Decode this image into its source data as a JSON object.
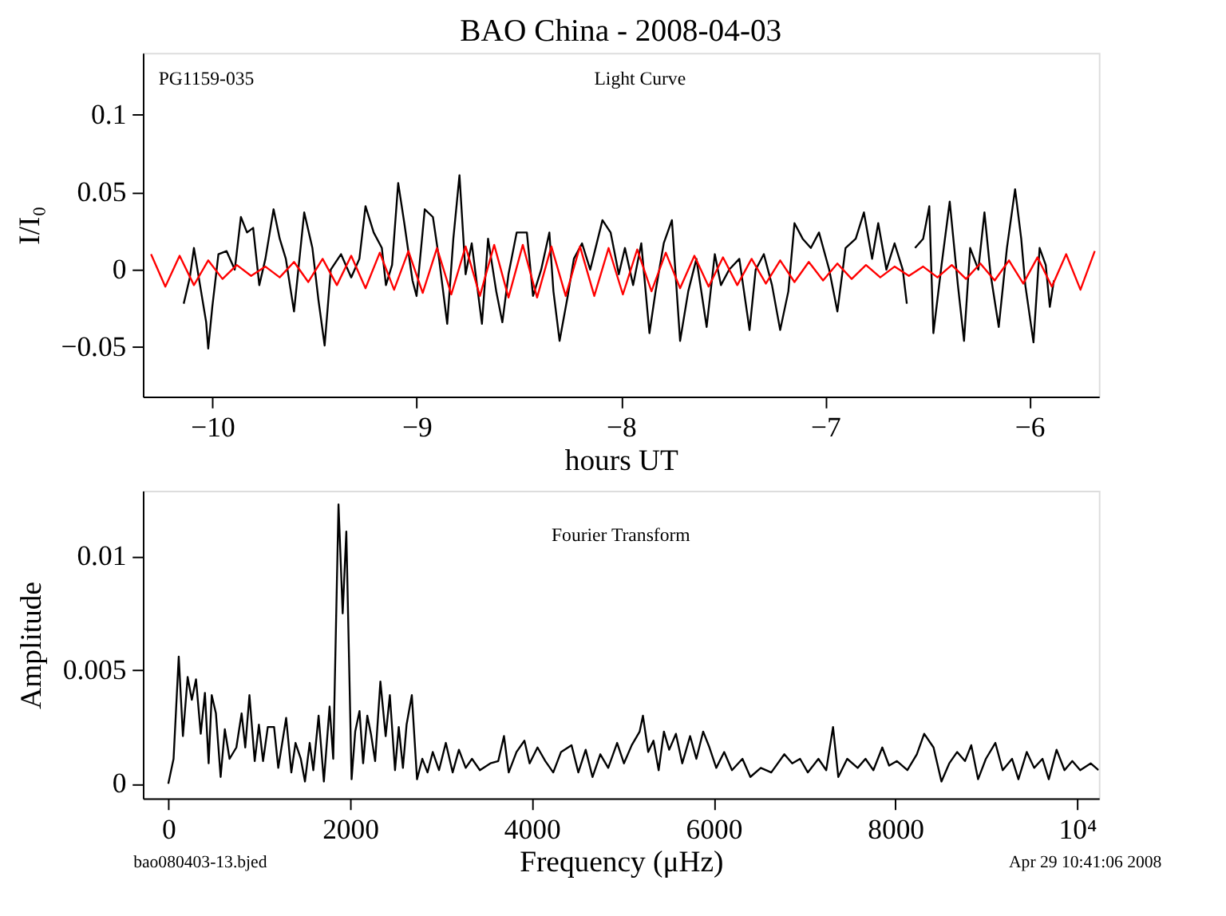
{
  "chart_data": [
    {
      "type": "line",
      "title": "BAO China - 2008-04-03",
      "xlabel": "hours UT",
      "ylabel": "I/I₀",
      "annotations": [
        "PG1159-035",
        "Light Curve"
      ],
      "xlim": [
        -10.34,
        -5.66
      ],
      "ylim": [
        -0.082,
        0.14
      ],
      "xticks": [
        {
          "value": -10,
          "label": "−10"
        },
        {
          "value": -9,
          "label": "−9"
        },
        {
          "value": -8,
          "label": "−8"
        },
        {
          "value": -7,
          "label": "−7"
        },
        {
          "value": -6,
          "label": "−6"
        }
      ],
      "yticks": [
        {
          "value": -0.05,
          "label": "−0.05"
        },
        0,
        0.05,
        0.1
      ],
      "grid": false,
      "series": [
        {
          "color": "#000000",
          "x": [
            -10.14,
            -10.11,
            -10.09,
            -10.06,
            -10.03,
            -10.02,
            -10.0,
            -9.97,
            -9.93,
            -9.89,
            -9.86,
            -9.83,
            -9.8,
            -9.77,
            -9.74,
            -9.7,
            -9.67,
            -9.64,
            -9.6,
            -9.55,
            -9.51,
            -9.48,
            -9.45,
            -9.42,
            -9.37,
            -9.32,
            -9.28,
            -9.25,
            -9.21,
            -9.17,
            -9.15,
            -9.12,
            -9.09,
            -9.06,
            -9.02,
            -9.0,
            -8.96,
            -8.92,
            -8.89,
            -8.85,
            -8.82,
            -8.79,
            -8.76,
            -8.73,
            -8.68,
            -8.65,
            -8.61,
            -8.58,
            -8.55,
            -8.51,
            -8.46,
            -8.43,
            -8.39,
            -8.35,
            -8.33,
            -8.3,
            -8.26,
            -8.23,
            -8.19,
            -8.15,
            -8.09,
            -8.05,
            -8.01,
            -7.98,
            -7.94,
            -7.9,
            -7.86,
            -7.83,
            -7.79,
            -7.75,
            -7.71,
            -7.67,
            -7.63,
            -7.58,
            -7.54,
            -7.51,
            -7.47,
            -7.42,
            -7.37,
            -7.34,
            -7.3,
            -7.26,
            -7.22,
            -7.18,
            -7.15,
            -7.11,
            -7.07,
            -7.03,
            -6.98,
            -6.94,
            -6.9,
            -6.85,
            -6.81,
            -6.77,
            -6.74,
            -6.7,
            -6.66,
            -6.62,
            -6.6,
            -6.58,
            -6.56,
            -6.52,
            -6.49,
            -6.47,
            -6.43,
            -6.39,
            -6.35,
            -6.32,
            -6.29,
            -6.25,
            -6.22,
            -6.19,
            -6.15,
            -6.11,
            -6.07,
            -6.04,
            -6.02,
            -5.98,
            -5.95,
            -5.92,
            -5.9,
            -5.88
          ],
          "values": [
            -0.022,
            -0.005,
            0.014,
            -0.01,
            -0.034,
            -0.051,
            -0.024,
            0.01,
            0.012,
            0,
            0.034,
            0.024,
            0.027,
            -0.01,
            0.007,
            0.039,
            0.02,
            0.007,
            -0.027,
            0.037,
            0.014,
            -0.02,
            -0.049,
            0,
            0.01,
            -0.005,
            0.007,
            0.041,
            0.024,
            0.014,
            -0.01,
            0.003,
            0.056,
            0.03,
            -0.007,
            -0.017,
            0.039,
            0.034,
            0.007,
            -0.035,
            0.02,
            0.061,
            -0.003,
            0.017,
            -0.035,
            0.02,
            -0.014,
            -0.034,
            -0.003,
            0.024,
            0.024,
            -0.017,
            0,
            0.024,
            -0.014,
            -0.046,
            -0.017,
            0.007,
            0.017,
            0,
            0.032,
            0.024,
            -0.003,
            0.014,
            -0.01,
            0.017,
            -0.041,
            -0.014,
            0.017,
            0.032,
            -0.046,
            -0.014,
            0.007,
            -0.037,
            0.01,
            -0.01,
            0,
            0.007,
            -0.039,
            0,
            0.01,
            -0.01,
            -0.039,
            -0.014,
            0.03,
            0.02,
            0.014,
            0.024,
            0,
            -0.027,
            0.014,
            0.02,
            0.037,
            0.007,
            0.03,
            0,
            0.017,
            0,
            -0.022,
            null,
            0.014,
            0.02,
            0.041,
            -0.041,
            0.003,
            0.044,
            -0.01,
            -0.046,
            0.014,
            0,
            0.037,
            -0.003,
            -0.037,
            0.014,
            0.052,
            0.02,
            -0.01,
            -0.047,
            0.014,
            0.003,
            -0.024,
            -0.007
          ]
        },
        {
          "color": "#ff0000",
          "x": [
            -10.3,
            -10.23,
            -10.16,
            -10.09,
            -10.02,
            -9.95,
            -9.88,
            -9.81,
            -9.74,
            -9.67,
            -9.6,
            -9.53,
            -9.46,
            -9.39,
            -9.32,
            -9.25,
            -9.18,
            -9.11,
            -9.04,
            -8.97,
            -8.9,
            -8.83,
            -8.76,
            -8.69,
            -8.62,
            -8.55,
            -8.48,
            -8.41,
            -8.34,
            -8.27,
            -8.2,
            -8.13,
            -8.06,
            -7.99,
            -7.92,
            -7.85,
            -7.78,
            -7.71,
            -7.64,
            -7.57,
            -7.5,
            -7.43,
            -7.36,
            -7.29,
            -7.22,
            -7.15,
            -7.08,
            -7.01,
            -6.94,
            -6.87,
            -6.8,
            -6.73,
            -6.66,
            -6.59,
            -6.52,
            -6.45,
            -6.38,
            -6.31,
            -6.24,
            -6.17,
            -6.1,
            -6.03,
            -5.96,
            -5.89,
            -5.82,
            -5.75,
            -5.68
          ],
          "values": [
            0.01,
            -0.011,
            0.009,
            -0.01,
            0.006,
            -0.006,
            0.003,
            -0.004,
            0.002,
            -0.005,
            0.005,
            -0.008,
            0.007,
            -0.01,
            0.009,
            -0.012,
            0.011,
            -0.013,
            0.012,
            -0.015,
            0.014,
            -0.016,
            0.015,
            -0.017,
            0.016,
            -0.018,
            0.016,
            -0.018,
            0.015,
            -0.017,
            0.015,
            -0.017,
            0.014,
            -0.016,
            0.013,
            -0.014,
            0.011,
            -0.012,
            0.009,
            -0.011,
            0.008,
            -0.01,
            0.007,
            -0.009,
            0.006,
            -0.008,
            0.005,
            -0.007,
            0.004,
            -0.006,
            0.003,
            -0.005,
            0.002,
            -0.004,
            0.002,
            -0.005,
            0.003,
            -0.006,
            0.004,
            -0.007,
            0.006,
            -0.009,
            0.008,
            -0.011,
            0.01,
            -0.013,
            0.012
          ]
        }
      ]
    },
    {
      "type": "line",
      "xlabel": "Frequency (μHz)",
      "ylabel": "Amplitude",
      "annotations": [
        "Fourier Transform",
        "bao080403-13.bjed",
        "Apr 29 10:41:06 2008"
      ],
      "xlim": [
        -280,
        10240
      ],
      "ylim": [
        -0.00064,
        0.0129
      ],
      "xticks": [
        0,
        2000,
        4000,
        6000,
        8000,
        {
          "value": 10000,
          "label": "10⁴"
        }
      ],
      "yticks": [
        0,
        0.005,
        0.01
      ],
      "grid": false,
      "series": [
        {
          "color": "#000000",
          "x": [
            0,
            58,
            115,
            161,
            213,
            259,
            305,
            357,
            403,
            444,
            478,
            524,
            576,
            622,
            674,
            749,
            807,
            847,
            893,
            951,
            997,
            1043,
            1095,
            1164,
            1210,
            1297,
            1354,
            1400,
            1458,
            1504,
            1556,
            1596,
            1654,
            1712,
            1775,
            1815,
            1873,
            1919,
            1959,
            2017,
            2057,
            2104,
            2144,
            2190,
            2230,
            2276,
            2334,
            2392,
            2438,
            2495,
            2536,
            2582,
            2622,
            2680,
            2737,
            2795,
            2853,
            2910,
            2979,
            3054,
            3129,
            3198,
            3273,
            3342,
            3429,
            3544,
            3631,
            3694,
            3746,
            3832,
            3919,
            3976,
            4063,
            4149,
            4236,
            4322,
            4437,
            4512,
            4593,
            4668,
            4754,
            4841,
            4939,
            5014,
            5100,
            5187,
            5223,
            5281,
            5339,
            5396,
            5454,
            5512,
            5586,
            5656,
            5742,
            5811,
            5886,
            5955,
            6030,
            6117,
            6203,
            6318,
            6405,
            6520,
            6635,
            6779,
            6866,
            6952,
            7038,
            7154,
            7240,
            7315,
            7373,
            7471,
            7586,
            7672,
            7759,
            7857,
            7932,
            8018,
            8133,
            8237,
            8318,
            8421,
            8508,
            8594,
            8681,
            8767,
            8836,
            8911,
            8997,
            9101,
            9182,
            9285,
            9355,
            9447,
            9528,
            9620,
            9689,
            9775,
            9862,
            9948,
            10035,
            10150,
            10236
          ],
          "values": [
            0,
            0.0011,
            0.0056,
            0.0021,
            0.0047,
            0.0037,
            0.0046,
            0.0022,
            0.004,
            0.0009,
            0.0039,
            0.0031,
            0.0003,
            0.0024,
            0.0011,
            0.0016,
            0.0031,
            0.0016,
            0.0039,
            0.001,
            0.0026,
            0.001,
            0.0025,
            0.0025,
            0.0007,
            0.0029,
            0.0005,
            0.0018,
            0.0011,
            0.0001,
            0.0018,
            0.0006,
            0.003,
            0.0001,
            0.0034,
            0.0011,
            0.0123,
            0.0075,
            0.0111,
            0.0002,
            0.0023,
            0.0032,
            0.0009,
            0.003,
            0.0022,
            0.001,
            0.0045,
            0.0021,
            0.0039,
            0.0006,
            0.0025,
            0.0007,
            0.0026,
            0.0039,
            0.0002,
            0.0011,
            0.0005,
            0.0014,
            0.0006,
            0.0018,
            0.0005,
            0.0015,
            0.0007,
            0.0011,
            0.0006,
            0.0009,
            0.001,
            0.0021,
            0.0005,
            0.0014,
            0.0019,
            0.0009,
            0.0016,
            0.001,
            0.0005,
            0.0014,
            0.0017,
            0.0005,
            0.0015,
            0.0003,
            0.0013,
            0.0007,
            0.0018,
            0.0009,
            0.0017,
            0.0023,
            0.003,
            0.0014,
            0.0019,
            0.0006,
            0.0023,
            0.0015,
            0.0022,
            0.0009,
            0.0021,
            0.0011,
            0.0023,
            0.0016,
            0.0007,
            0.0014,
            0.0006,
            0.0011,
            0.0003,
            0.0007,
            0.0005,
            0.0013,
            0.0009,
            0.0011,
            0.0005,
            0.0011,
            0.0006,
            0.0025,
            0.0003,
            0.0011,
            0.0007,
            0.0011,
            0.0006,
            0.0016,
            0.0008,
            0.001,
            0.0006,
            0.0013,
            0.0022,
            0.0016,
            0.0001,
            0.0009,
            0.0014,
            0.001,
            0.0017,
            0.0002,
            0.0011,
            0.0018,
            0.0006,
            0.0011,
            0.0002,
            0.0014,
            0.0007,
            0.0011,
            0.0002,
            0.0015,
            0.0006,
            0.001,
            0.0006,
            0.0009,
            0.0006
          ]
        }
      ]
    }
  ]
}
